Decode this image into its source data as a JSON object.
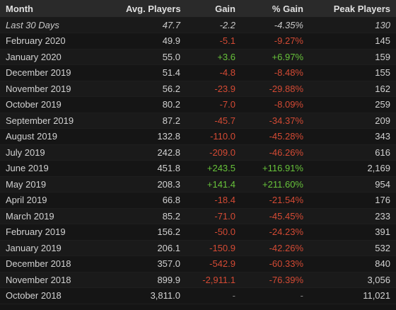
{
  "headers": {
    "month": "Month",
    "avg": "Avg. Players",
    "gain": "Gain",
    "pct": "% Gain",
    "peak": "Peak Players"
  },
  "colors": {
    "positive": "#67c23a",
    "negative": "#d44a34",
    "header_bg": "#2a2a2a",
    "row_bg": "#1a1a1a"
  },
  "rows": [
    {
      "month": "Last 30 Days",
      "avg": "47.7",
      "gain": "-2.2",
      "pct": "-4.35%",
      "peak": "130"
    },
    {
      "month": "February 2020",
      "avg": "49.9",
      "gain": "-5.1",
      "pct": "-9.27%",
      "peak": "145"
    },
    {
      "month": "January 2020",
      "avg": "55.0",
      "gain": "+3.6",
      "pct": "+6.97%",
      "peak": "159"
    },
    {
      "month": "December 2019",
      "avg": "51.4",
      "gain": "-4.8",
      "pct": "-8.48%",
      "peak": "155"
    },
    {
      "month": "November 2019",
      "avg": "56.2",
      "gain": "-23.9",
      "pct": "-29.88%",
      "peak": "162"
    },
    {
      "month": "October 2019",
      "avg": "80.2",
      "gain": "-7.0",
      "pct": "-8.09%",
      "peak": "259"
    },
    {
      "month": "September 2019",
      "avg": "87.2",
      "gain": "-45.7",
      "pct": "-34.37%",
      "peak": "209"
    },
    {
      "month": "August 2019",
      "avg": "132.8",
      "gain": "-110.0",
      "pct": "-45.28%",
      "peak": "343"
    },
    {
      "month": "July 2019",
      "avg": "242.8",
      "gain": "-209.0",
      "pct": "-46.26%",
      "peak": "616"
    },
    {
      "month": "June 2019",
      "avg": "451.8",
      "gain": "+243.5",
      "pct": "+116.91%",
      "peak": "2,169"
    },
    {
      "month": "May 2019",
      "avg": "208.3",
      "gain": "+141.4",
      "pct": "+211.60%",
      "peak": "954"
    },
    {
      "month": "April 2019",
      "avg": "66.8",
      "gain": "-18.4",
      "pct": "-21.54%",
      "peak": "176"
    },
    {
      "month": "March 2019",
      "avg": "85.2",
      "gain": "-71.0",
      "pct": "-45.45%",
      "peak": "233"
    },
    {
      "month": "February 2019",
      "avg": "156.2",
      "gain": "-50.0",
      "pct": "-24.23%",
      "peak": "391"
    },
    {
      "month": "January 2019",
      "avg": "206.1",
      "gain": "-150.9",
      "pct": "-42.26%",
      "peak": "532"
    },
    {
      "month": "December 2018",
      "avg": "357.0",
      "gain": "-542.9",
      "pct": "-60.33%",
      "peak": "840"
    },
    {
      "month": "November 2018",
      "avg": "899.9",
      "gain": "-2,911.1",
      "pct": "-76.39%",
      "peak": "3,056"
    },
    {
      "month": "October 2018",
      "avg": "3,811.0",
      "gain": "-",
      "pct": "-",
      "peak": "11,021"
    }
  ]
}
